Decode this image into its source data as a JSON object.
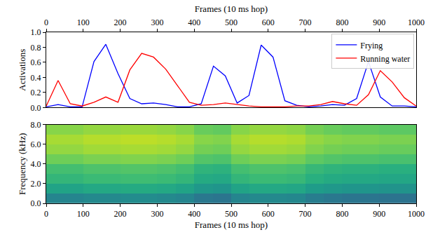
{
  "chart_data": [
    {
      "type": "line",
      "xlabel": "Frames (10 ms hop)",
      "ylabel": "Activations",
      "x": [
        0,
        32,
        65,
        97,
        129,
        161,
        194,
        226,
        258,
        290,
        323,
        355,
        387,
        419,
        452,
        484,
        516,
        548,
        581,
        613,
        645,
        677,
        710,
        742,
        774,
        806,
        839,
        871,
        903,
        935,
        968,
        1000
      ],
      "series": [
        {
          "name": "Frying",
          "color": "#0000ff",
          "values": [
            0.01,
            0.04,
            0.01,
            0.01,
            0.61,
            0.84,
            0.45,
            0.12,
            0.05,
            0.06,
            0.04,
            0.01,
            0.01,
            0.05,
            0.55,
            0.42,
            0.06,
            0.16,
            0.83,
            0.67,
            0.09,
            0.03,
            0.01,
            0.02,
            0.04,
            0.03,
            0.12,
            0.61,
            0.14,
            0.02,
            0.02,
            0.01
          ]
        },
        {
          "name": "Running water",
          "color": "#ff0000",
          "values": [
            0.02,
            0.36,
            0.05,
            0.02,
            0.07,
            0.14,
            0.07,
            0.5,
            0.72,
            0.67,
            0.51,
            0.29,
            0.07,
            0.03,
            0.04,
            0.06,
            0.04,
            0.02,
            0.01,
            0.01,
            0.01,
            0.02,
            0.02,
            0.04,
            0.08,
            0.05,
            0.03,
            0.17,
            0.49,
            0.34,
            0.13,
            0.02
          ]
        }
      ],
      "xlim": [
        0,
        1000
      ],
      "xticks": [
        0,
        100,
        200,
        300,
        400,
        500,
        600,
        700,
        800,
        900,
        1000
      ],
      "ylim": [
        0,
        1
      ],
      "yticks": [
        {
          "value": 0,
          "label": "0.0"
        },
        {
          "value": 0.2,
          "label": "0.2"
        },
        {
          "value": 0.4,
          "label": "0.4"
        },
        {
          "value": 0.6,
          "label": "0.6"
        },
        {
          "value": 0.8,
          "label": "0.8"
        },
        {
          "value": 1,
          "label": "1.0"
        }
      ],
      "legend": "upper right"
    },
    {
      "type": "heatmap",
      "xlabel": "Frames (10 ms hop)",
      "ylabel": "Frequency (kHz)",
      "color": "Viridis",
      "x": [
        25,
        75,
        125,
        175,
        225,
        275,
        325,
        375,
        425,
        475,
        525,
        575,
        625,
        675,
        725,
        775,
        825,
        875,
        925,
        975
      ],
      "y": [
        0.5,
        1.5,
        2.5,
        3.5,
        4.5,
        5.5,
        6.5,
        7.5
      ],
      "cells": [
        [
          0.45,
          0.45,
          0.47,
          0.47,
          0.48,
          0.48,
          0.47,
          0.45,
          0.4,
          0.39,
          0.45,
          0.47,
          0.47,
          0.46,
          0.42,
          0.4,
          0.39,
          0.39,
          0.38,
          0.38
        ],
        [
          0.58,
          0.58,
          0.6,
          0.6,
          0.61,
          0.61,
          0.6,
          0.58,
          0.53,
          0.52,
          0.58,
          0.6,
          0.6,
          0.59,
          0.55,
          0.53,
          0.52,
          0.52,
          0.51,
          0.51
        ],
        [
          0.66,
          0.66,
          0.68,
          0.68,
          0.69,
          0.69,
          0.68,
          0.66,
          0.61,
          0.6,
          0.66,
          0.68,
          0.68,
          0.67,
          0.63,
          0.61,
          0.6,
          0.6,
          0.59,
          0.59
        ],
        [
          0.7,
          0.7,
          0.72,
          0.72,
          0.73,
          0.73,
          0.72,
          0.7,
          0.65,
          0.64,
          0.7,
          0.72,
          0.72,
          0.71,
          0.67,
          0.65,
          0.64,
          0.64,
          0.63,
          0.63
        ],
        [
          0.78,
          0.78,
          0.8,
          0.8,
          0.81,
          0.81,
          0.8,
          0.78,
          0.73,
          0.72,
          0.78,
          0.8,
          0.8,
          0.79,
          0.75,
          0.73,
          0.72,
          0.72,
          0.71,
          0.71
        ],
        [
          0.84,
          0.84,
          0.86,
          0.86,
          0.87,
          0.87,
          0.86,
          0.84,
          0.79,
          0.78,
          0.84,
          0.86,
          0.86,
          0.85,
          0.81,
          0.79,
          0.78,
          0.78,
          0.77,
          0.77
        ],
        [
          0.87,
          0.87,
          0.89,
          0.89,
          0.9,
          0.9,
          0.89,
          0.87,
          0.82,
          0.81,
          0.87,
          0.89,
          0.89,
          0.88,
          0.84,
          0.82,
          0.81,
          0.81,
          0.8,
          0.8
        ],
        [
          0.82,
          0.82,
          0.84,
          0.84,
          0.85,
          0.85,
          0.84,
          0.82,
          0.77,
          0.76,
          0.82,
          0.84,
          0.84,
          0.83,
          0.79,
          0.77,
          0.76,
          0.76,
          0.75,
          0.75
        ]
      ],
      "zlim": [
        0,
        1
      ],
      "xlim": [
        0,
        1000
      ],
      "xticks": [
        0,
        100,
        200,
        300,
        400,
        500,
        600,
        700,
        800,
        900,
        1000
      ],
      "ylim": [
        0,
        8
      ],
      "yticks": [
        {
          "value": 0,
          "label": "0.0"
        },
        {
          "value": 2,
          "label": "2.0"
        },
        {
          "value": 4,
          "label": "4.0"
        },
        {
          "value": 6,
          "label": "6.0"
        },
        {
          "value": 8,
          "label": "8.0"
        }
      ]
    }
  ]
}
